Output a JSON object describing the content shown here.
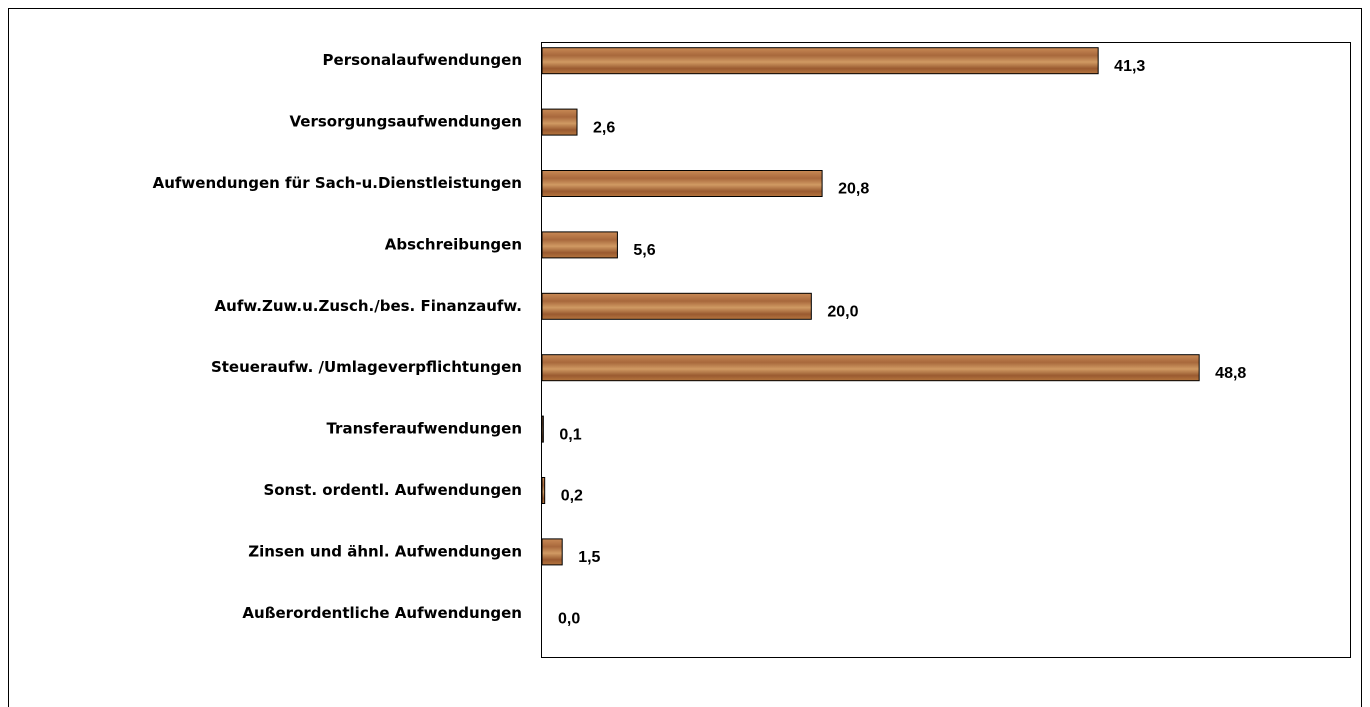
{
  "chart_data": {
    "type": "bar",
    "orientation": "horizontal",
    "categories": [
      "Personalaufwendungen",
      "Versorgungsaufwendungen",
      "Aufwendungen für Sach-u.Dienstleistungen",
      "Abschreibungen",
      "Aufw.Zuw.u.Zusch./bes. Finanzaufw.",
      "Steueraufw. /Umlageverpflichtungen",
      "Transferaufwendungen",
      "Sonst. ordentl. Aufwendungen",
      "Zinsen und ähnl. Aufwendungen",
      "Außerordentliche Aufwendungen"
    ],
    "values": [
      41.3,
      2.6,
      20.8,
      5.6,
      20.0,
      48.8,
      0.1,
      0.2,
      1.5,
      0.0
    ],
    "value_labels": [
      "41,3",
      "2,6",
      "20,8",
      "5,6",
      "20,0",
      "48,8",
      "0,1",
      "0,2",
      "1,5",
      "0,0"
    ],
    "color": "#a8683c",
    "xlim": [
      0,
      60
    ]
  }
}
